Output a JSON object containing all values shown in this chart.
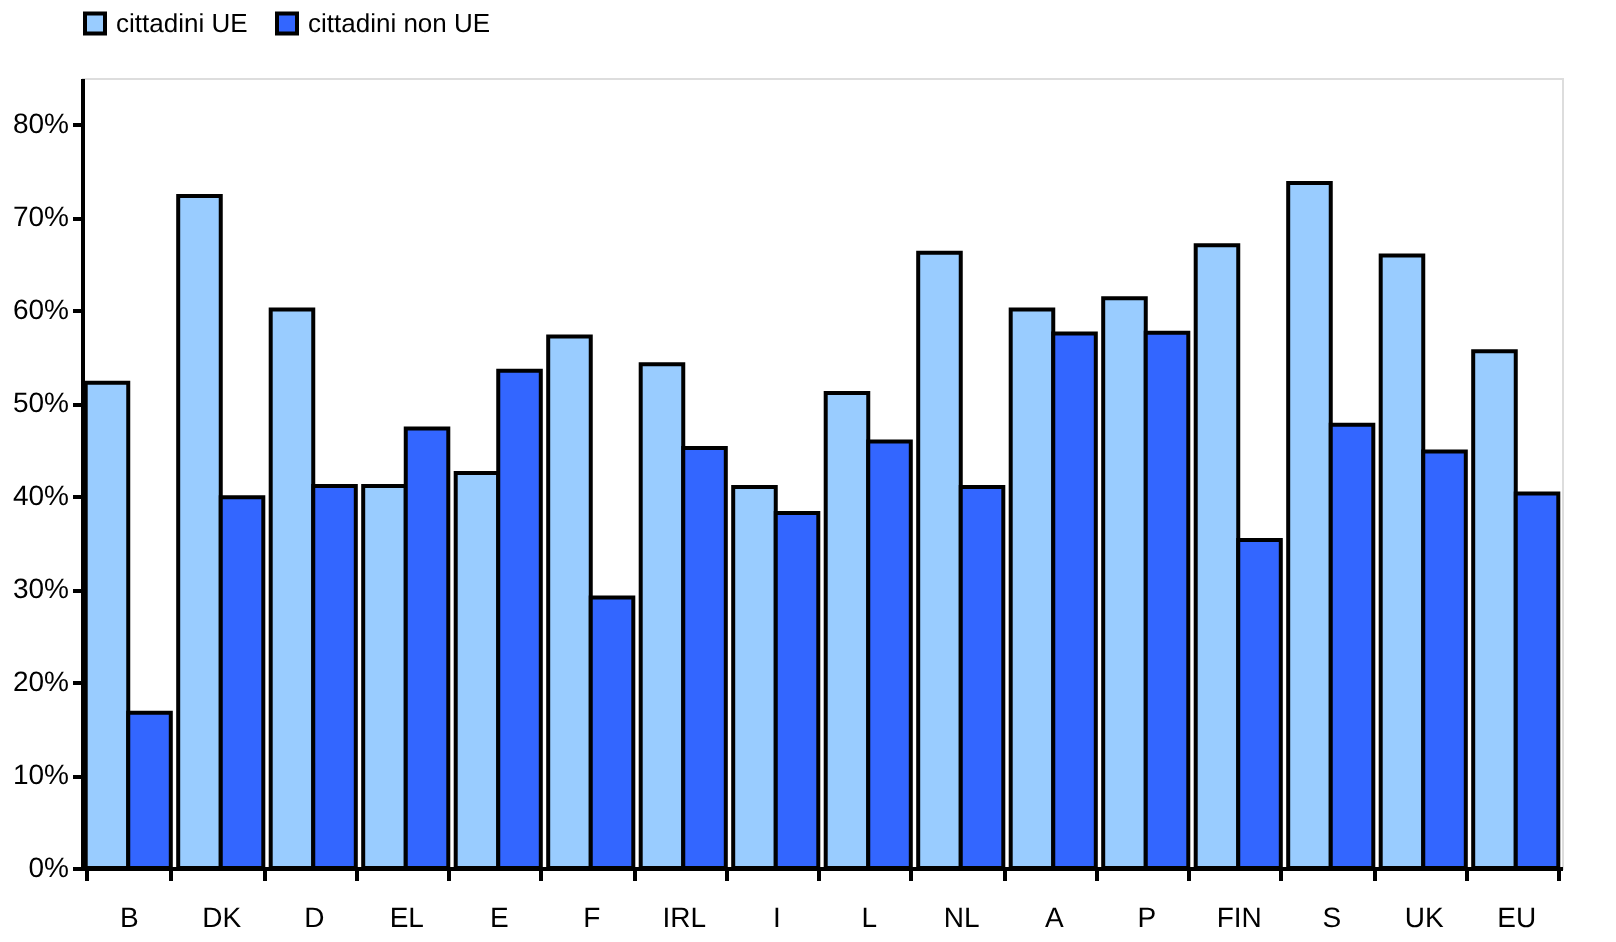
{
  "chart_data": {
    "type": "bar",
    "categories": [
      "B",
      "DK",
      "D",
      "EL",
      "E",
      "F",
      "IRL",
      "I",
      "L",
      "NL",
      "A",
      "P",
      "FIN",
      "S",
      "UK",
      "EU"
    ],
    "series": [
      {
        "name": "cittadini UE",
        "color": "#99ccff",
        "values": [
          52.2,
          72.3,
          60.1,
          41.1,
          42.5,
          57.2,
          54.2,
          41.0,
          51.1,
          66.2,
          60.1,
          61.3,
          67.0,
          73.7,
          65.9,
          55.6
        ]
      },
      {
        "name": "cittadini non UE",
        "color": "#3366ff",
        "values": [
          16.7,
          39.9,
          41.1,
          47.3,
          53.5,
          29.1,
          45.2,
          38.2,
          45.9,
          41.0,
          57.5,
          57.6,
          35.3,
          47.7,
          44.8,
          40.3
        ]
      }
    ],
    "ylim": [
      0,
      85
    ],
    "yticks": [
      {
        "value": 0,
        "label": "0%"
      },
      {
        "value": 10,
        "label": "10%"
      },
      {
        "value": 20,
        "label": "20%"
      },
      {
        "value": 30,
        "label": "30%"
      },
      {
        "value": 40,
        "label": "40%"
      },
      {
        "value": 50,
        "label": "50%"
      },
      {
        "value": 60,
        "label": "60%"
      },
      {
        "value": 70,
        "label": "70%"
      },
      {
        "value": 80,
        "label": "80%"
      }
    ],
    "grid": false,
    "legend": "top"
  }
}
